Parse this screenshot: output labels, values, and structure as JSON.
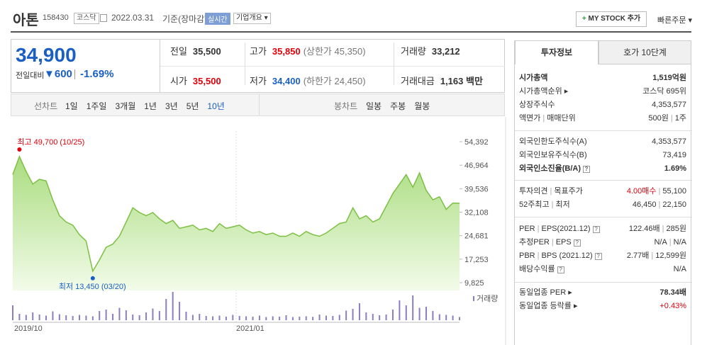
{
  "header": {
    "name": "아톤",
    "code": "158430",
    "market": "코스닥",
    "date": "2022.03.31",
    "basis": "기준(장마감)",
    "realtime": "실시간",
    "overview": "기업개요",
    "mystock": "MY STOCK 추가",
    "quick_order": "빠른주문"
  },
  "quote": {
    "price": "34,900",
    "change_label": "전일대비",
    "change": "600",
    "change_rate": "-1.69%"
  },
  "summary": {
    "rows": [
      [
        {
          "label": "전일",
          "value": "35,500"
        },
        {
          "label": "고가",
          "value": "35,850",
          "note": "(상한가 45,350)"
        },
        {
          "label": "거래량",
          "value": "33,212"
        }
      ],
      [
        {
          "label": "시가",
          "value": "35,500"
        },
        {
          "label": "저가",
          "value": "34,400",
          "note": "(하한가 24,450)"
        },
        {
          "label": "거래대금",
          "value": "1,163 백만"
        }
      ]
    ]
  },
  "tabs": {
    "line_label": "선차트",
    "line": [
      "1일",
      "1주일",
      "3개월",
      "1년",
      "3년",
      "5년",
      "10년"
    ],
    "candle_label": "봉차트",
    "candle": [
      "일봉",
      "주봉",
      "월봉"
    ]
  },
  "chart_data": {
    "type": "area",
    "color": "#7cc043",
    "values": [
      44000,
      49700,
      45000,
      41000,
      42500,
      42000,
      36000,
      31000,
      29000,
      28000,
      25000,
      23000,
      13450,
      17000,
      21000,
      22000,
      24500,
      29000,
      33500,
      32000,
      31000,
      32000,
      30000,
      28500,
      29500,
      27000,
      27500,
      28000,
      26500,
      27000,
      26000,
      28500,
      27000,
      27500,
      28000,
      26500,
      25500,
      26000,
      25000,
      25500,
      24500,
      24500,
      25500,
      24500,
      26000,
      25000,
      24500,
      25500,
      27000,
      28500,
      29000,
      33500,
      30000,
      31000,
      29000,
      30000,
      34000,
      38000,
      41000,
      44000,
      40000,
      44500,
      39000,
      36000,
      37000,
      33000,
      35000,
      34900
    ],
    "volume": [
      420000,
      180000,
      150000,
      220000,
      160000,
      130000,
      250000,
      170000,
      140000,
      120000,
      150000,
      130000,
      110000,
      260000,
      300000,
      180000,
      350000,
      280000,
      160000,
      140000,
      220000,
      330000,
      260000,
      600000,
      800000,
      520000,
      240000,
      150000,
      180000,
      120000,
      110000,
      130000,
      100000,
      150000,
      120000,
      110000,
      100000,
      130000,
      90000,
      110000,
      100000,
      140000,
      90000,
      100000,
      110000,
      95000,
      160000,
      130000,
      120000,
      150000,
      270000,
      320000,
      480000,
      220000,
      180000,
      140000,
      160000,
      300000,
      560000,
      420000,
      700000,
      350000,
      380000,
      260000,
      170000,
      150000,
      130000,
      90000
    ],
    "volume_color": "#8e7cc3",
    "volume_label": "거래량",
    "ylim": [
      7361,
      57752
    ],
    "yticks": [
      {
        "value": 54392,
        "label": "54,392"
      },
      {
        "value": 46964,
        "label": "46,964"
      },
      {
        "value": 39536,
        "label": "39,536"
      },
      {
        "value": 32108,
        "label": "32,108"
      },
      {
        "value": 24681,
        "label": "24,681"
      },
      {
        "value": 17253,
        "label": "17,253"
      },
      {
        "value": 9825,
        "label": "9,825"
      }
    ],
    "max_label": "최고 49,700 (10/25)",
    "min_label": "최저 13,450 (03/20)",
    "x_labels": [
      "2019/10",
      "2021/01"
    ]
  },
  "invest": {
    "tabs": [
      "투자정보",
      "호가 10단계"
    ],
    "market_cap": "시가총액",
    "market_cap_value": "1,519억원",
    "rank": "시가총액순위",
    "rank_value": "코스닥 695위",
    "shares": "상장주식수",
    "shares_value": "4,353,577",
    "face": "액면가",
    "unit": "매매단위",
    "face_value": "500원",
    "unit_value": "1주",
    "f_limit": "외국인한도주식수(A)",
    "f_limit_value": "4,353,577",
    "f_hold": "외국인보유주식수(B)",
    "f_hold_value": "73,419",
    "f_rate": "외국인소진율(B/A)",
    "f_rate_value": "1.69%",
    "opinion": "투자의견",
    "target": "목표주가",
    "opinion_value": "4.00매수",
    "target_value": "55,100",
    "high52": "52주최고",
    "low": "최저",
    "high52_value": "46,450",
    "low_value": "22,150",
    "per": "PER",
    "eps": "EPS(2021.12)",
    "per_value": "122.46배",
    "eps_value": "285원",
    "est_per": "추정PER",
    "est_eps": "EPS",
    "est_per_value": "N/A",
    "est_eps_value": "N/A",
    "pbr": "PBR",
    "bps": "BPS (2021.12)",
    "pbr_value": "2.77배",
    "bps_value": "12,599원",
    "dividend": "배당수익률",
    "dividend_value": "N/A",
    "sector_per": "동일업종 PER",
    "sector_per_value": "78.34배",
    "sector_rate": "동일업종 등락률",
    "sector_rate_value": "+0.43%"
  }
}
